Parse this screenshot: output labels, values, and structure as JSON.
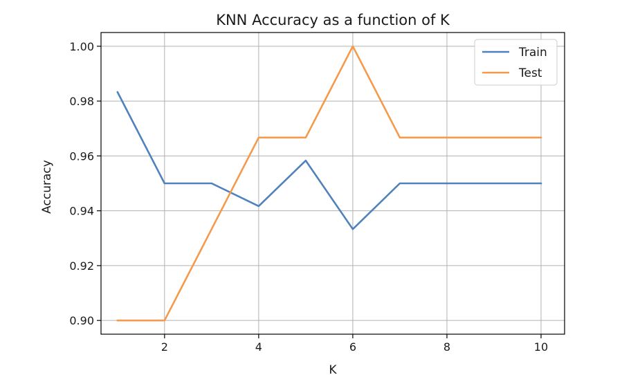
{
  "chart_data": {
    "type": "line",
    "title": "KNN Accuracy as a function of K",
    "xlabel": "K",
    "ylabel": "Accuracy",
    "xlim": [
      0.65,
      10.5
    ],
    "ylim": [
      0.895,
      1.005
    ],
    "xticks": [
      2,
      4,
      6,
      8,
      10
    ],
    "xtick_labels": [
      "2",
      "4",
      "6",
      "8",
      "10"
    ],
    "yticks": [
      0.9,
      0.92,
      0.94,
      0.96,
      0.98,
      1.0
    ],
    "ytick_labels": [
      "0.90",
      "0.92",
      "0.94",
      "0.96",
      "0.98",
      "1.00"
    ],
    "grid": true,
    "legend_position": "upper-right",
    "x": [
      1,
      2,
      3,
      4,
      5,
      6,
      7,
      8,
      9,
      10
    ],
    "series": [
      {
        "name": "Train",
        "color": "#4f81bd",
        "values": [
          0.9833,
          0.95,
          0.95,
          0.9417,
          0.9583,
          0.9333,
          0.95,
          0.95,
          0.95,
          0.95
        ]
      },
      {
        "name": "Test",
        "color": "#f49a4a",
        "values": [
          0.9,
          0.9,
          0.9333,
          0.9667,
          0.9667,
          1.0,
          0.9667,
          0.9667,
          0.9667,
          0.9667
        ]
      }
    ]
  }
}
